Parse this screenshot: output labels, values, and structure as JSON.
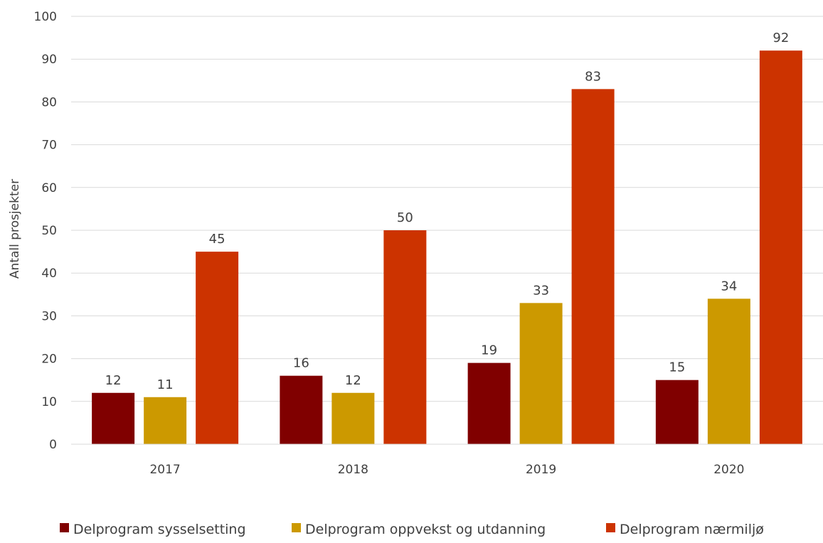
{
  "chart_data": {
    "type": "bar",
    "title": "",
    "xlabel": "",
    "ylabel": "Antall prosjekter",
    "categories": [
      "2017",
      "2018",
      "2019",
      "2020"
    ],
    "ylim": [
      0,
      100
    ],
    "yticks": [
      0,
      10,
      20,
      30,
      40,
      50,
      60,
      70,
      80,
      90,
      100
    ],
    "grid": true,
    "legend_position": "bottom",
    "data_labels": true,
    "series": [
      {
        "name": "Delprogram sysselsetting",
        "color": "#800000",
        "values": [
          12,
          16,
          19,
          15
        ]
      },
      {
        "name": "Delprogram oppvekst og utdanning",
        "color": "#CC9900",
        "values": [
          11,
          12,
          33,
          34
        ]
      },
      {
        "name": "Delprogram nærmiljø",
        "color": "#CC3300",
        "values": [
          45,
          50,
          83,
          92
        ]
      }
    ]
  }
}
